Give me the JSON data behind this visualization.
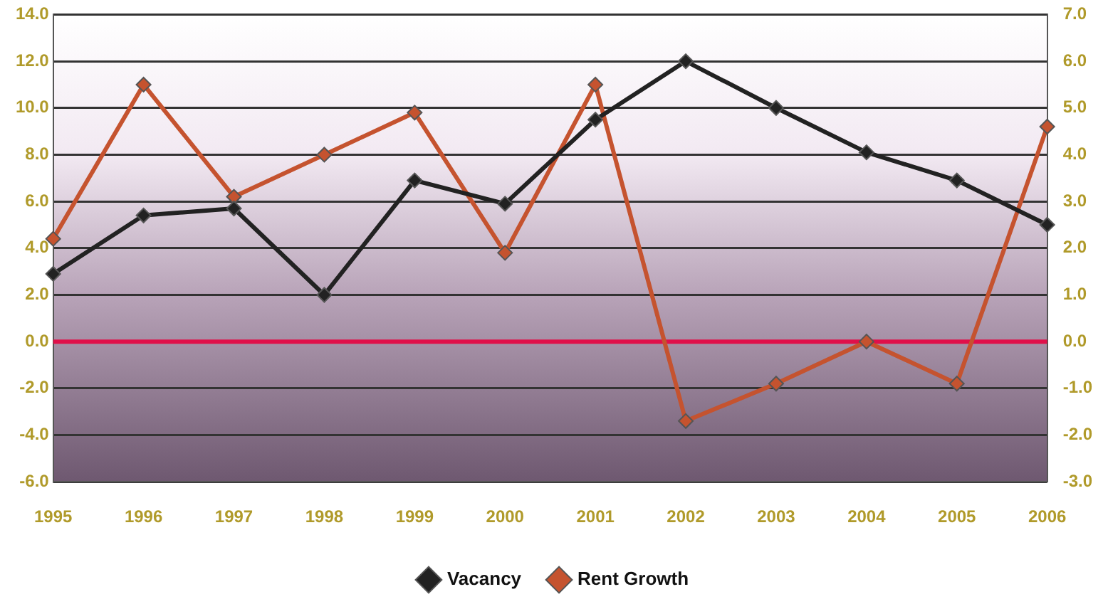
{
  "chart_data": {
    "type": "line",
    "categories": [
      "1995",
      "1996",
      "1997",
      "1998",
      "1999",
      "2000",
      "2001",
      "2002",
      "2003",
      "2004",
      "2005",
      "2006"
    ],
    "series": [
      {
        "name": "Vacancy",
        "color": "#222222",
        "values": [
          2.9,
          5.4,
          5.7,
          2.0,
          6.9,
          5.9,
          9.5,
          12.0,
          10.0,
          8.1,
          6.9,
          5.0
        ]
      },
      {
        "name": "Rent Growth",
        "color": "#c5532f",
        "axis": "y2",
        "values": [
          2.2,
          5.5,
          3.1,
          4.0,
          4.9,
          1.9,
          5.5,
          -1.7,
          -0.9,
          0.0,
          -0.9,
          4.6
        ]
      }
    ],
    "ylim": [
      -6,
      14
    ],
    "yticks": [
      {
        "value": -6,
        "label": "-6.0"
      },
      {
        "value": -4,
        "label": "-4.0"
      },
      {
        "value": -2,
        "label": "-2.0"
      },
      {
        "value": 0,
        "label": "0.0"
      },
      {
        "value": 2,
        "label": "2.0"
      },
      {
        "value": 4,
        "label": "4.0"
      },
      {
        "value": 6,
        "label": "6.0"
      },
      {
        "value": 8,
        "label": "8.0"
      },
      {
        "value": 10,
        "label": "10.0"
      },
      {
        "value": 12,
        "label": "12.0"
      },
      {
        "value": 14,
        "label": "14.0"
      }
    ],
    "y2lim": [
      -3,
      7
    ],
    "y2ticks": [
      {
        "value": -3,
        "label": "-3.0"
      },
      {
        "value": -2,
        "label": "-2.0"
      },
      {
        "value": -1,
        "label": "-1.0"
      },
      {
        "value": 0,
        "label": "0.0"
      },
      {
        "value": 1,
        "label": "1.0"
      },
      {
        "value": 2,
        "label": "2.0"
      },
      {
        "value": 3,
        "label": "3.0"
      },
      {
        "value": 4,
        "label": "4.0"
      },
      {
        "value": 5,
        "label": "5.0"
      },
      {
        "value": 6,
        "label": "6.0"
      },
      {
        "value": 7,
        "label": "7.0"
      }
    ],
    "ref_lines": [
      {
        "axis": "y",
        "value": 0,
        "color": "#e0104a"
      }
    ],
    "grid": "y",
    "legend": "bottom",
    "marker": "diamond",
    "line_style": "solid"
  }
}
